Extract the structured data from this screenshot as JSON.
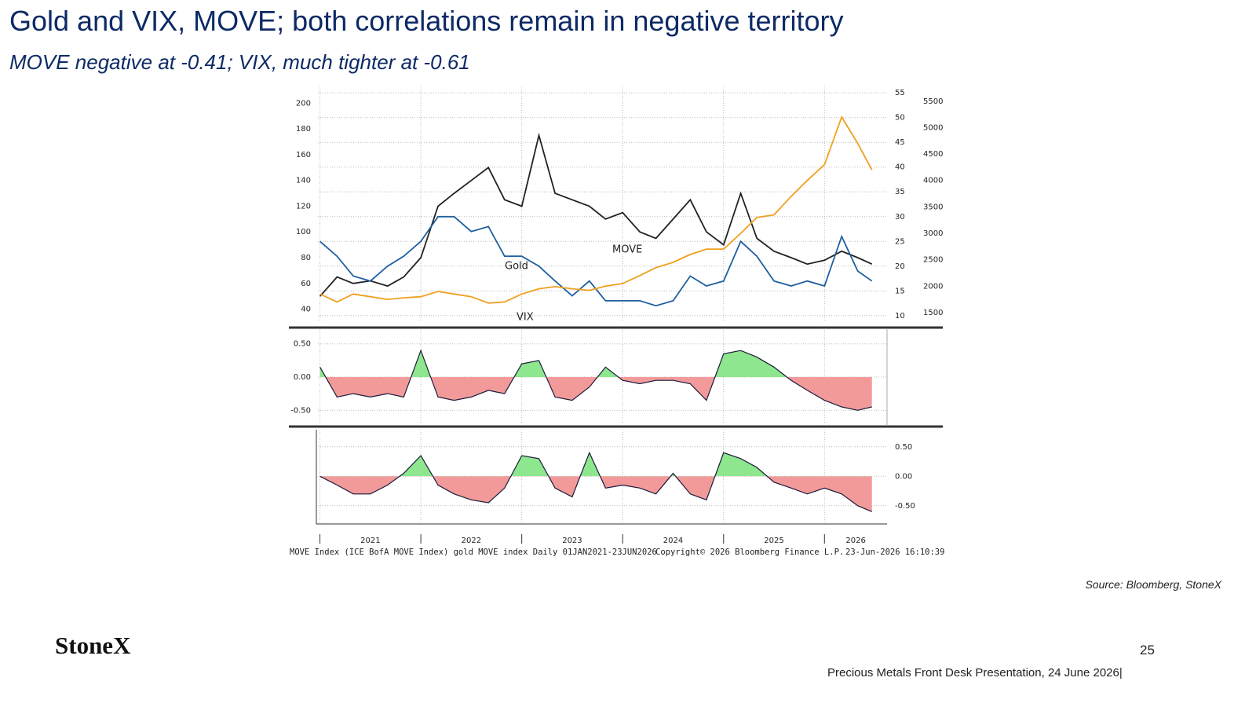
{
  "slide": {
    "title": "Gold and VIX, MOVE; both correlations remain in negative territory",
    "subtitle": "MOVE negative at -0.41;  VIX, much tighter at -0.61",
    "source": "Source: Bloomberg, StoneX",
    "logo": "StoneX",
    "page_number": "25",
    "footer": "Precious Metals Front Desk Presentation, 24 June 2026|"
  },
  "bloomberg_footer": {
    "left": "MOVE Index (ICE BofA MOVE Index) gold MOVE index Daily 01JAN2021-23JUN2026",
    "center": "Copyright© 2026 Bloomberg Finance L.P.",
    "right": "23-Jun-2026 16:10:39"
  },
  "chart_data": [
    {
      "type": "line",
      "x": [
        2021.0,
        2021.17,
        2021.33,
        2021.5,
        2021.67,
        2021.83,
        2022.0,
        2022.17,
        2022.33,
        2022.5,
        2022.67,
        2022.83,
        2023.0,
        2023.17,
        2023.33,
        2023.5,
        2023.67,
        2023.83,
        2024.0,
        2024.17,
        2024.33,
        2024.5,
        2024.67,
        2024.83,
        2025.0,
        2025.17,
        2025.33,
        2025.5,
        2025.67,
        2025.83,
        2026.0,
        2026.17,
        2026.33,
        2026.47
      ],
      "xlim": [
        2020.98,
        2026.62
      ],
      "ylim": [
        30,
        213
      ],
      "yticks": [
        40,
        60,
        80,
        100,
        120,
        140,
        160,
        180,
        200
      ],
      "y2lim": [
        8.7,
        56.3
      ],
      "y2ticks": [
        10,
        15,
        20,
        25,
        30,
        35,
        40,
        45,
        50,
        55
      ],
      "y3lim": [
        1320,
        5780
      ],
      "y3ticks": [
        1500,
        2000,
        2500,
        3000,
        3500,
        4000,
        4500,
        5000,
        5500
      ],
      "grid": true,
      "series": [
        {
          "name": "MOVE",
          "color": "#222222",
          "axis": "y",
          "values": [
            50,
            65,
            60,
            62,
            58,
            65,
            80,
            120,
            130,
            140,
            150,
            125,
            120,
            175,
            130,
            125,
            120,
            110,
            115,
            100,
            95,
            110,
            125,
            100,
            90,
            130,
            95,
            85,
            80,
            75,
            78,
            85,
            80,
            75
          ]
        },
        {
          "name": "VIX",
          "color": "#1f5fa0",
          "axis": "y2",
          "values": [
            25,
            22,
            18,
            17,
            20,
            22,
            25,
            30,
            30,
            27,
            28,
            22,
            22,
            20,
            17,
            14,
            17,
            13,
            13,
            13,
            12,
            13,
            18,
            16,
            17,
            25,
            22,
            17,
            16,
            17,
            16,
            26,
            19,
            17
          ]
        },
        {
          "name": "Gold",
          "color": "#f0a020",
          "axis": "y3",
          "values": [
            1850,
            1700,
            1850,
            1800,
            1750,
            1780,
            1800,
            1900,
            1850,
            1800,
            1680,
            1700,
            1850,
            1950,
            1990,
            1950,
            1920,
            2000,
            2050,
            2200,
            2350,
            2450,
            2600,
            2700,
            2700,
            3000,
            3300,
            3350,
            3700,
            4000,
            4300,
            5200,
            4700,
            4200
          ]
        }
      ]
    },
    {
      "type": "area",
      "x": [
        2021.0,
        2021.17,
        2021.33,
        2021.5,
        2021.67,
        2021.83,
        2022.0,
        2022.17,
        2022.33,
        2022.5,
        2022.67,
        2022.83,
        2023.0,
        2023.17,
        2023.33,
        2023.5,
        2023.67,
        2023.83,
        2024.0,
        2024.17,
        2024.33,
        2024.5,
        2024.67,
        2024.83,
        2025.0,
        2025.17,
        2025.33,
        2025.5,
        2025.67,
        2025.83,
        2026.0,
        2026.17,
        2026.33,
        2026.47
      ],
      "xlim": [
        2020.98,
        2026.62
      ],
      "ylim": [
        -0.71,
        0.71
      ],
      "yticks": [
        {
          "value": 0.5,
          "label": "0.50"
        },
        {
          "value": 0,
          "label": "0.00"
        },
        {
          "value": -0.5,
          "label": "-0.50"
        }
      ],
      "grid": true,
      "color": "#1a1a3a",
      "positive_color": "#8ee68e",
      "negative_color": "#f29a9a",
      "values": [
        0.15,
        -0.3,
        -0.25,
        -0.3,
        -0.25,
        -0.3,
        0.4,
        -0.3,
        -0.35,
        -0.3,
        -0.2,
        -0.25,
        0.2,
        0.25,
        -0.3,
        -0.35,
        -0.15,
        0.15,
        -0.05,
        -0.1,
        -0.05,
        -0.05,
        -0.1,
        -0.35,
        0.35,
        0.4,
        0.3,
        0.15,
        -0.05,
        -0.2,
        -0.35,
        -0.45,
        -0.5,
        -0.45
      ]
    },
    {
      "type": "area",
      "x": [
        2021.0,
        2021.17,
        2021.33,
        2021.5,
        2021.67,
        2021.83,
        2022.0,
        2022.17,
        2022.33,
        2022.5,
        2022.67,
        2022.83,
        2023.0,
        2023.17,
        2023.33,
        2023.5,
        2023.67,
        2023.83,
        2024.0,
        2024.17,
        2024.33,
        2024.5,
        2024.67,
        2024.83,
        2025.0,
        2025.17,
        2025.33,
        2025.5,
        2025.67,
        2025.83,
        2026.0,
        2026.17,
        2026.33,
        2026.47
      ],
      "xlim": [
        2020.98,
        2026.62
      ],
      "xticks": [
        2021,
        2022,
        2023,
        2024,
        2025,
        2026
      ],
      "ylim": [
        -0.81,
        0.79
      ],
      "yticks": [
        {
          "value": 0.5,
          "label": "0.50"
        },
        {
          "value": 0,
          "label": "0.00"
        },
        {
          "value": -0.5,
          "label": "-0.50"
        }
      ],
      "grid": true,
      "color": "#1a1a3a",
      "positive_color": "#8ee68e",
      "negative_color": "#f29a9a",
      "values": [
        0,
        -0.15,
        -0.3,
        -0.3,
        -0.15,
        0.05,
        0.35,
        -0.15,
        -0.3,
        -0.4,
        -0.45,
        -0.2,
        0.35,
        0.3,
        -0.2,
        -0.35,
        0.4,
        -0.2,
        -0.15,
        -0.2,
        -0.3,
        0.05,
        -0.3,
        -0.4,
        0.4,
        0.3,
        0.15,
        -0.1,
        -0.2,
        -0.3,
        -0.2,
        -0.3,
        -0.5,
        -0.6
      ]
    }
  ]
}
